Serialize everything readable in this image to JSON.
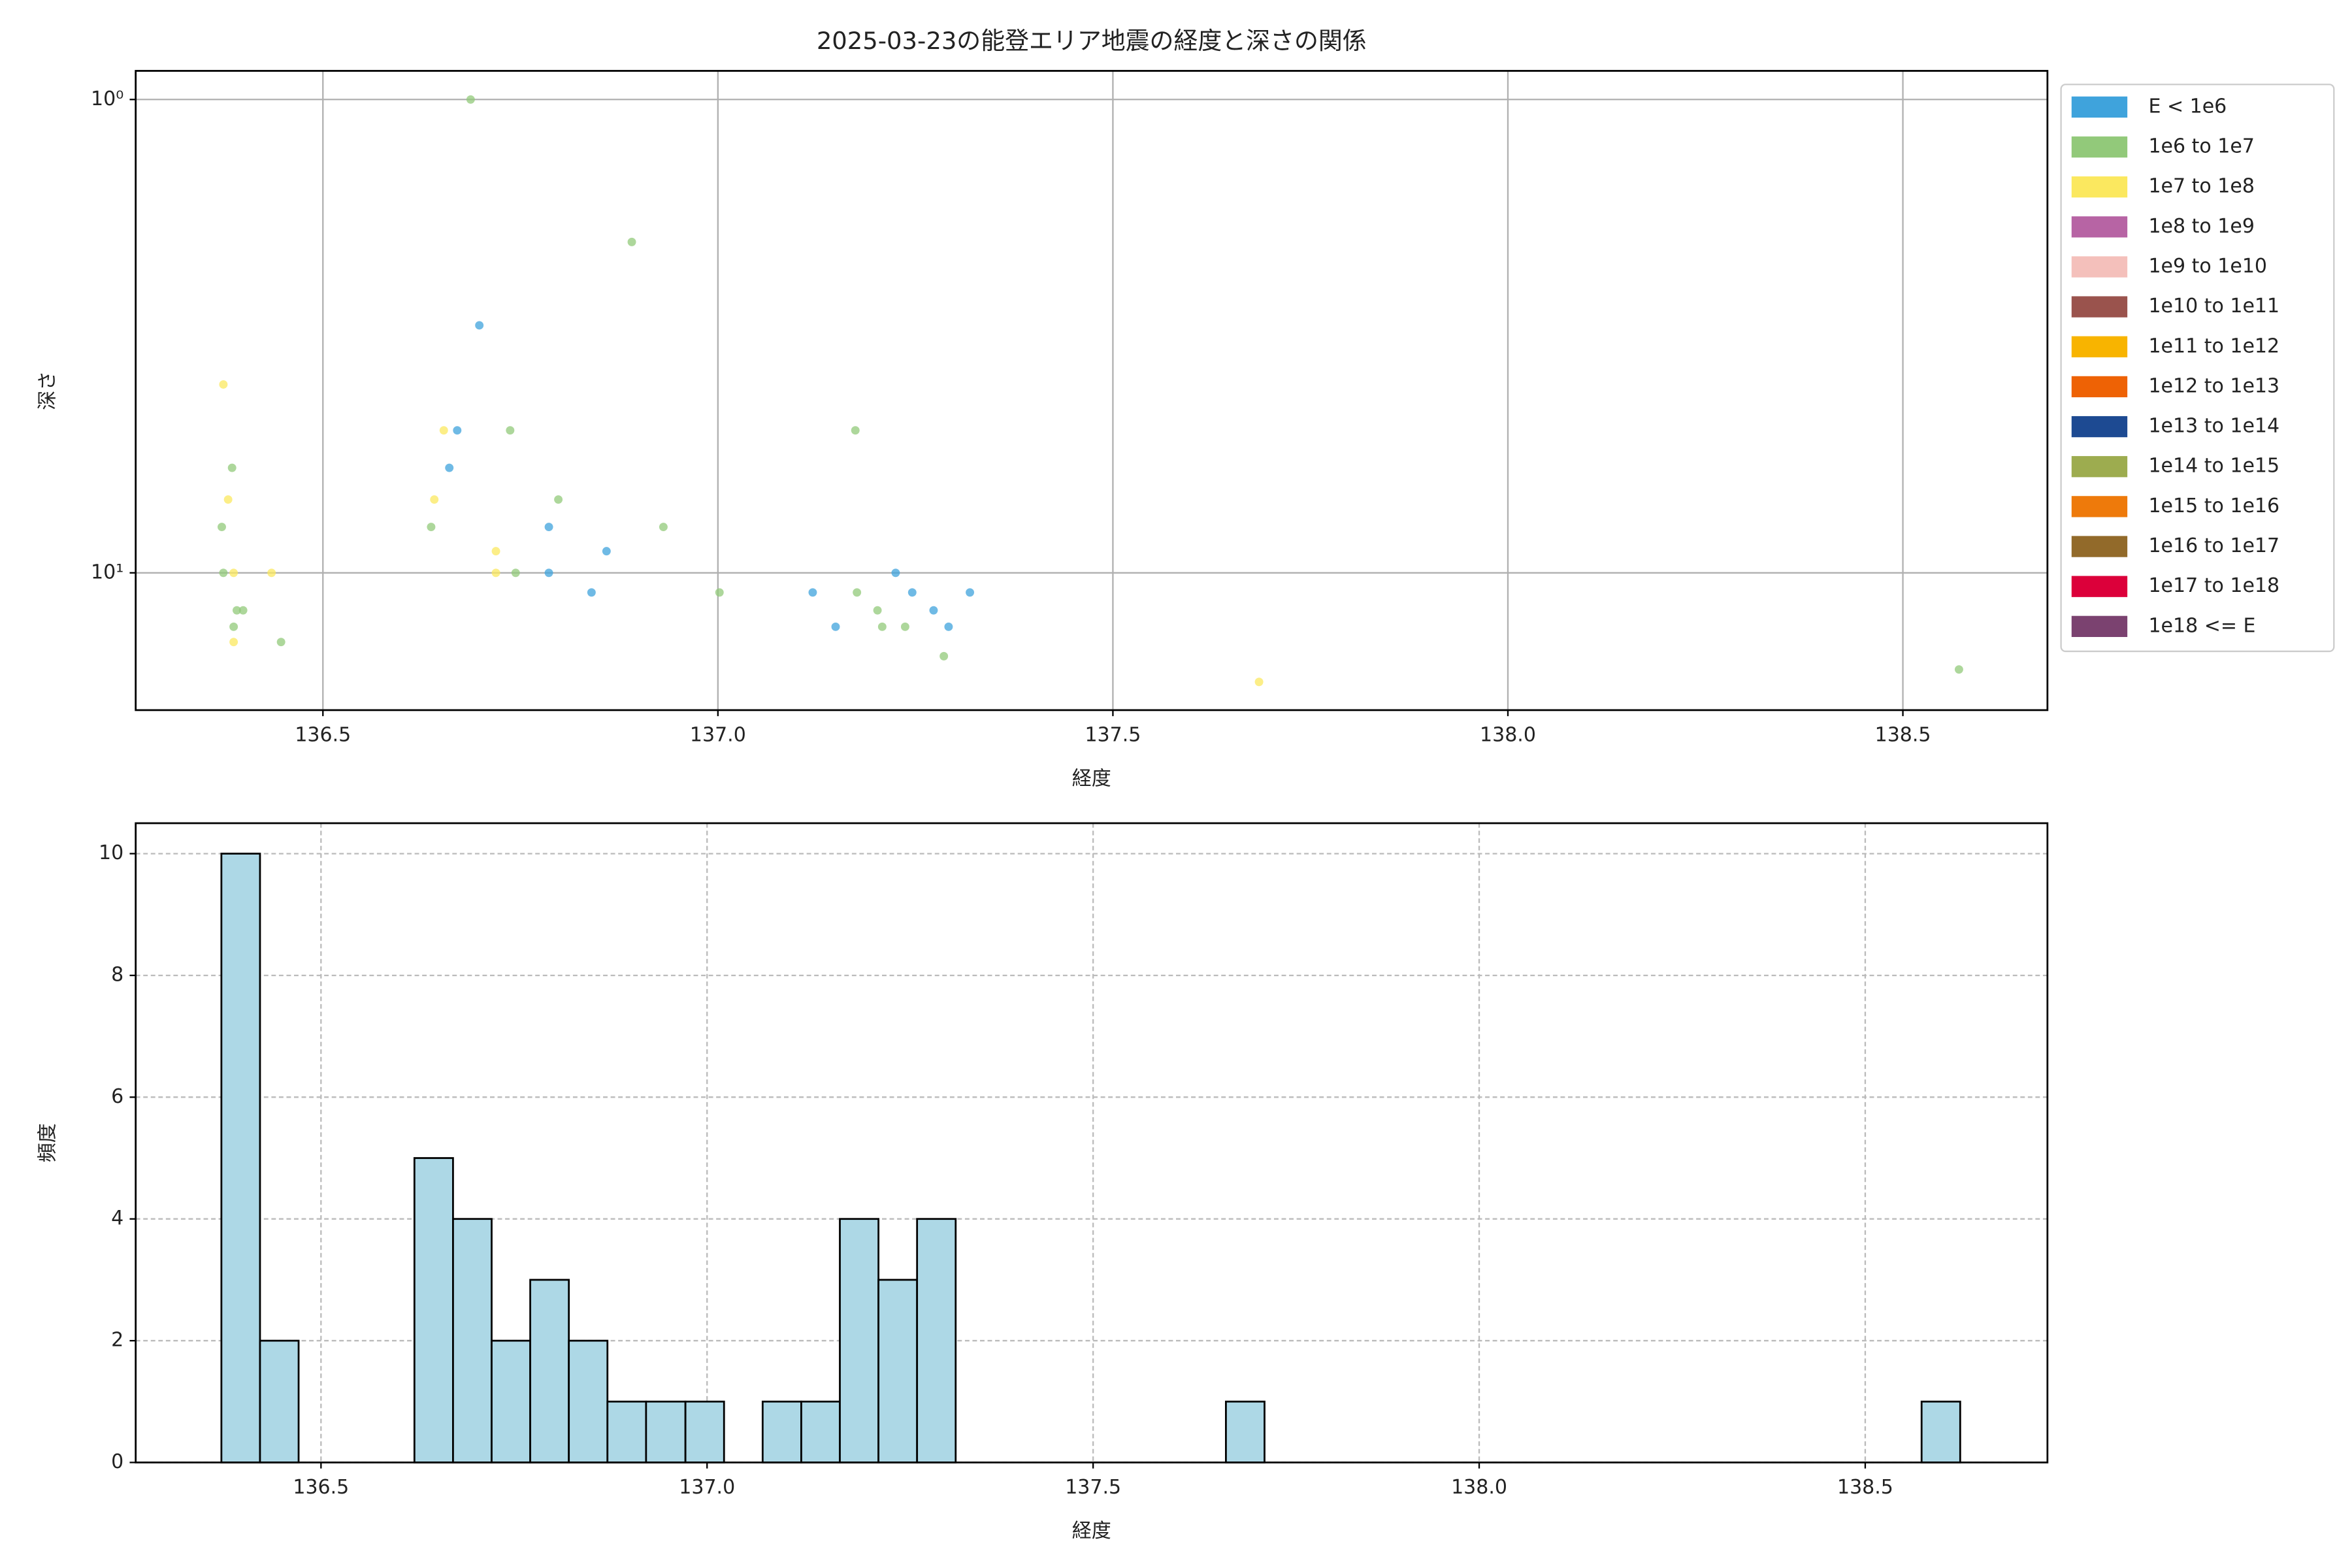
{
  "chart_data": [
    {
      "type": "scatter",
      "title": "2025-03-23の能登エリア地震の経度と深さの関係",
      "x_label": "経度",
      "y_label": "深さ",
      "xlim": [
        136.263,
        138.683
      ],
      "xticks": [
        136.5,
        {
          "value": 137,
          "label": "137.0"
        },
        137.5,
        {
          "value": 138,
          "label": "138.0"
        },
        138.5
      ],
      "ylim": [
        19.5,
        0.87
      ],
      "yscale": "log",
      "yticks": [
        {
          "value": 1,
          "label": "10⁰"
        },
        {
          "value": 10,
          "label": "10¹"
        }
      ],
      "grid": true,
      "grid_style": "solid",
      "legend": "right",
      "series": [
        {
          "name": "E < 1e6",
          "color": "#3fa3dc",
          "x": [
            136.698,
            136.67,
            136.66,
            136.786,
            136.859,
            136.786,
            137.225,
            136.84,
            137.12,
            137.246,
            137.319,
            137.273,
            137.149,
            137.292
          ],
          "values": [
            3,
            5,
            6,
            8,
            9,
            10,
            10,
            11,
            11,
            11,
            11,
            12,
            13,
            13
          ]
        },
        {
          "name": "1e6 to 1e7",
          "color": "#92c97a",
          "x": [
            136.687,
            136.891,
            136.737,
            137.174,
            136.385,
            136.798,
            136.372,
            136.637,
            136.931,
            136.374,
            136.744,
            137.002,
            137.176,
            136.391,
            136.399,
            137.202,
            136.387,
            137.208,
            137.237,
            136.447,
            137.286,
            138.571
          ],
          "values": [
            1,
            2,
            5,
            5,
            6,
            7,
            8,
            8,
            8,
            10,
            10,
            11,
            11,
            12,
            12,
            12,
            13,
            13,
            13,
            14,
            15,
            16
          ]
        },
        {
          "name": "1e7 to 1e8",
          "color": "#fbe85f",
          "x": [
            136.374,
            136.653,
            136.38,
            136.641,
            136.719,
            136.387,
            136.435,
            136.719,
            136.387,
            137.685
          ],
          "values": [
            4,
            5,
            7,
            7,
            9,
            10,
            10,
            10,
            14,
            17
          ]
        },
        {
          "name": "1e8 to 1e9",
          "color": "#b764a4",
          "x": [],
          "values": []
        },
        {
          "name": "1e9 to 1e10",
          "color": "#f4c0bb",
          "x": [],
          "values": []
        },
        {
          "name": "1e10 to 1e11",
          "color": "#9a534d",
          "x": [],
          "values": []
        },
        {
          "name": "1e11 to 1e12",
          "color": "#f8b400",
          "x": [],
          "values": []
        },
        {
          "name": "1e12 to 1e13",
          "color": "#ee6205",
          "x": [],
          "values": []
        },
        {
          "name": "1e13 to 1e14",
          "color": "#1d4a92",
          "x": [],
          "values": []
        },
        {
          "name": "1e14 to 1e15",
          "color": "#9dac4f",
          "x": [],
          "values": []
        },
        {
          "name": "1e15 to 1e16",
          "color": "#ee7a0b",
          "x": [],
          "values": []
        },
        {
          "name": "1e16 to 1e17",
          "color": "#926a2a",
          "x": [],
          "values": []
        },
        {
          "name": "1e17 to 1e18",
          "color": "#dc003a",
          "x": [],
          "values": []
        },
        {
          "name": "1e18 <= E",
          "color": "#7b4270",
          "x": [],
          "values": []
        }
      ]
    },
    {
      "type": "histogram",
      "x_label": "経度",
      "y_label": "頻度",
      "color": "#add8e6",
      "edgecolor": "#000000",
      "xlim": [
        136.26,
        138.736
      ],
      "xticks": [
        136.5,
        {
          "value": 137,
          "label": "137.0"
        },
        137.5,
        {
          "value": 138,
          "label": "138.0"
        },
        138.5
      ],
      "ylim": [
        0,
        10.5
      ],
      "yticks": [
        0,
        2,
        4,
        6,
        8,
        10
      ],
      "grid": true,
      "grid_style": "dashed",
      "bins": [
        136.371,
        136.421,
        136.471,
        136.521,
        136.571,
        136.621,
        136.671,
        136.721,
        136.771,
        136.821,
        136.871,
        136.921,
        136.972,
        137.022,
        137.072,
        137.122,
        137.172,
        137.222,
        137.272,
        137.322,
        137.372,
        137.422,
        137.472,
        137.522,
        137.572,
        137.622,
        137.672,
        137.722,
        137.772,
        137.822,
        137.872,
        137.923,
        137.973,
        138.023,
        138.073,
        138.123,
        138.173,
        138.223,
        138.273,
        138.323,
        138.373,
        138.423,
        138.473,
        138.523,
        138.573,
        138.623
      ],
      "values": [
        10,
        2,
        0,
        0,
        0,
        5,
        4,
        2,
        3,
        2,
        1,
        1,
        1,
        0,
        1,
        1,
        4,
        3,
        4,
        0,
        0,
        0,
        0,
        0,
        0,
        0,
        1,
        0,
        0,
        0,
        0,
        0,
        0,
        0,
        0,
        0,
        0,
        0,
        0,
        0,
        0,
        0,
        0,
        0,
        1
      ]
    }
  ]
}
